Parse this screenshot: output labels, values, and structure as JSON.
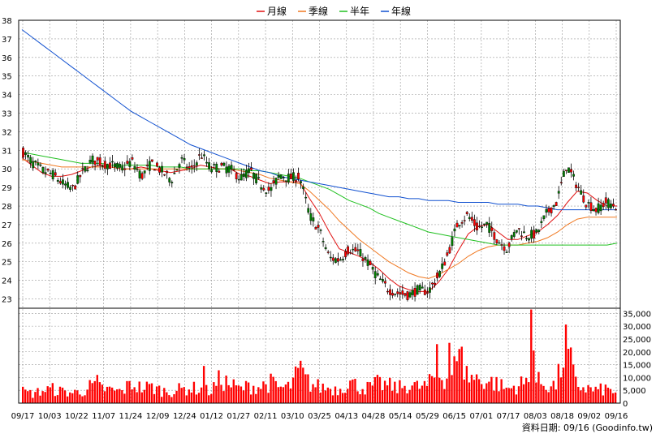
{
  "legend": [
    {
      "label": "月線",
      "color": "#e01010"
    },
    {
      "label": "季線",
      "color": "#f07820"
    },
    {
      "label": "半年",
      "color": "#20c020"
    },
    {
      "label": "年線",
      "color": "#1050d0"
    }
  ],
  "source_text": "資料日期: 09/16  (Goodinfo.tw)",
  "chart_data": [
    {
      "type": "candlestick",
      "ylim": [
        22.5,
        38
      ],
      "y_ticks": [
        23,
        24,
        25,
        26,
        27,
        28,
        29,
        30,
        31,
        32,
        33,
        34,
        35,
        36,
        37,
        38
      ],
      "x_ticks": [
        "09/17",
        "10/03",
        "10/22",
        "11/07",
        "11/24",
        "12/09",
        "12/24",
        "01/12",
        "01/27",
        "02/11",
        "03/10",
        "03/25",
        "04/13",
        "04/28",
        "05/14",
        "05/29",
        "06/15",
        "07/01",
        "07/17",
        "08/03",
        "08/18",
        "09/02",
        "09/16"
      ],
      "grid": true,
      "legend_position": "top-center",
      "candle_colors": {
        "up": "#ff0000",
        "down": "#008000"
      },
      "price_path": [
        30.9,
        30.3,
        29.9,
        29.7,
        29.2,
        28.9,
        29.8,
        30.5,
        30.3,
        30.2,
        30.0,
        30.4,
        29.6,
        30.3,
        29.9,
        29.4,
        30.5,
        29.9,
        30.8,
        30.0,
        30.1,
        30.0,
        29.5,
        29.9,
        29.2,
        28.8,
        29.7,
        29.5,
        29.6,
        27.5,
        26.7,
        25.2,
        25.1,
        25.7,
        25.5,
        24.9,
        24.1,
        23.5,
        23.3,
        23.2,
        23.5,
        23.4,
        24.2,
        25.4,
        27.1,
        27.5,
        26.8,
        27.0,
        26.2,
        25.7,
        26.8,
        26.4,
        26.5,
        27.6,
        28.2,
        30.2,
        29.2,
        28.2,
        27.8,
        28.2,
        28.0
      ],
      "ma_series": [
        {
          "name": "月線",
          "values": [
            30.6,
            30.2,
            29.8,
            29.6,
            29.6,
            29.7,
            29.9,
            30.1,
            30.2,
            30.1,
            30.0,
            30.0,
            30.1,
            30.0,
            29.9,
            29.8,
            29.9,
            30.0,
            30.2,
            30.1,
            30.0,
            30.0,
            29.7,
            29.6,
            29.4,
            29.2,
            29.3,
            29.3,
            29.3,
            28.4,
            27.6,
            26.6,
            25.7,
            25.5,
            25.3,
            25.0,
            24.6,
            24.1,
            23.7,
            23.5,
            23.4,
            23.4,
            23.9,
            24.6,
            25.6,
            26.5,
            26.9,
            27.0,
            26.6,
            26.2,
            26.2,
            26.4,
            26.6,
            27.0,
            27.5,
            28.2,
            28.8,
            28.7,
            28.3,
            28.0,
            28.0
          ]
        },
        {
          "name": "季線",
          "values": [
            30.5,
            30.4,
            30.3,
            30.2,
            30.1,
            30.1,
            30.1,
            30.1,
            30.1,
            30.1,
            30.0,
            30.0,
            30.0,
            30.0,
            30.0,
            30.0,
            30.0,
            30.0,
            30.0,
            30.0,
            30.0,
            30.0,
            29.9,
            29.8,
            29.7,
            29.5,
            29.4,
            29.3,
            29.2,
            28.8,
            28.3,
            27.8,
            27.2,
            26.7,
            26.2,
            25.8,
            25.4,
            25.0,
            24.7,
            24.4,
            24.2,
            24.1,
            24.3,
            24.6,
            24.9,
            25.3,
            25.6,
            25.8,
            25.9,
            25.9,
            25.9,
            26.0,
            26.1,
            26.3,
            26.6,
            27.0,
            27.3,
            27.4,
            27.4,
            27.4,
            27.4
          ]
        },
        {
          "name": "半年",
          "values": [
            30.9,
            30.8,
            30.7,
            30.6,
            30.5,
            30.4,
            30.3,
            30.3,
            30.3,
            30.2,
            30.2,
            30.2,
            30.2,
            30.2,
            30.1,
            30.1,
            30.1,
            30.0,
            30.0,
            30.0,
            30.0,
            30.0,
            30.0,
            29.9,
            29.9,
            29.8,
            29.7,
            29.6,
            29.5,
            29.3,
            29.1,
            28.9,
            28.6,
            28.3,
            28.1,
            27.9,
            27.6,
            27.4,
            27.2,
            27.0,
            26.8,
            26.6,
            26.5,
            26.4,
            26.3,
            26.2,
            26.1,
            26.0,
            25.9,
            25.9,
            25.9,
            25.9,
            25.9,
            25.9,
            25.9,
            25.9,
            25.9,
            25.9,
            25.9,
            25.9,
            26.0
          ]
        },
        {
          "name": "年線",
          "values": [
            37.5,
            37.1,
            36.7,
            36.3,
            35.9,
            35.5,
            35.1,
            34.7,
            34.3,
            33.9,
            33.5,
            33.1,
            32.8,
            32.5,
            32.2,
            31.9,
            31.6,
            31.3,
            31.1,
            30.9,
            30.7,
            30.5,
            30.3,
            30.1,
            29.9,
            29.8,
            29.6,
            29.5,
            29.4,
            29.3,
            29.2,
            29.1,
            29.0,
            28.9,
            28.8,
            28.7,
            28.6,
            28.5,
            28.5,
            28.4,
            28.4,
            28.3,
            28.3,
            28.3,
            28.2,
            28.2,
            28.2,
            28.2,
            28.1,
            28.1,
            28.1,
            28.0,
            28.0,
            27.9,
            27.8,
            27.8,
            27.8,
            27.8,
            27.8,
            27.8,
            27.8
          ]
        }
      ]
    },
    {
      "type": "bar",
      "ylim": [
        0,
        37000
      ],
      "y_ticks": [
        0,
        5000,
        10000,
        15000,
        20000,
        25000,
        30000,
        35000
      ],
      "y_tick_labels": [
        "0",
        "5,000",
        "10,000",
        "15,000",
        "20,000",
        "25,000",
        "30,000",
        "35,000"
      ],
      "bar_color": "#ff0000",
      "volume_path": [
        5000,
        4000,
        5500,
        6000,
        5000,
        4500,
        5000,
        7500,
        6500,
        5500,
        5000,
        8500,
        6500,
        7000,
        5500,
        5000,
        6000,
        6500,
        6000,
        5000,
        10500,
        8000,
        6000,
        7500,
        7000,
        9000,
        6500,
        7000,
        13500,
        8500,
        7000,
        6500,
        6000,
        9500,
        7000,
        6500,
        8500,
        7500,
        6500,
        8000,
        7000,
        7500,
        13500,
        10500,
        18000,
        12000,
        10500,
        9500,
        8500,
        6000,
        7500,
        9000,
        9500,
        8000,
        7500,
        25000,
        8000,
        6500,
        5500,
        6000,
        5000
      ],
      "volume_peaks": [
        {
          "x": 0.858,
          "v": 36500
        },
        {
          "x": 0.864,
          "v": 20500
        },
        {
          "x": 0.72,
          "v": 23500
        },
        {
          "x": 0.742,
          "v": 22000
        },
        {
          "x": 0.697,
          "v": 23000
        },
        {
          "x": 0.469,
          "v": 16500
        },
        {
          "x": 0.306,
          "v": 14500
        },
        {
          "x": 0.126,
          "v": 11000
        }
      ]
    }
  ]
}
